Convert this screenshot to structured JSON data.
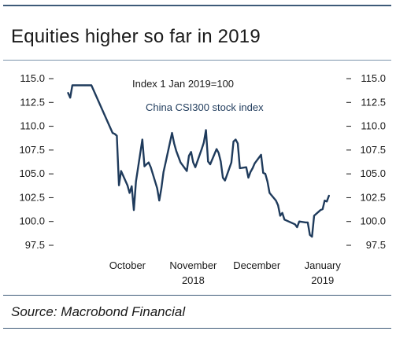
{
  "title": "Equities higher so far in 2019",
  "source": "Source: Macrobond Financial",
  "colors": {
    "series": "#1f3b5c",
    "rule": "#3d5a78",
    "text": "#1a1a1a"
  },
  "chart_data": {
    "type": "line",
    "annotations": {
      "index_note": "Index 1 Jan 2019=100"
    },
    "series": [
      {
        "name": "China CSI300 stock index",
        "color": "#1f3b5c",
        "x": [
          "2018-09-17",
          "2018-09-18",
          "2018-09-19",
          "2018-09-20",
          "2018-09-21",
          "2018-09-25",
          "2018-09-26",
          "2018-09-27",
          "2018-09-28",
          "2018-10-08",
          "2018-10-09",
          "2018-10-10",
          "2018-10-11",
          "2018-10-12",
          "2018-10-15",
          "2018-10-16",
          "2018-10-17",
          "2018-10-18",
          "2018-10-19",
          "2018-10-22",
          "2018-10-23",
          "2018-10-24",
          "2018-10-25",
          "2018-10-26",
          "2018-10-29",
          "2018-10-30",
          "2018-10-31",
          "2018-11-01",
          "2018-11-02",
          "2018-11-05",
          "2018-11-06",
          "2018-11-07",
          "2018-11-08",
          "2018-11-09",
          "2018-11-12",
          "2018-11-13",
          "2018-11-14",
          "2018-11-15",
          "2018-11-16",
          "2018-11-19",
          "2018-11-20",
          "2018-11-21",
          "2018-11-22",
          "2018-11-23",
          "2018-11-26",
          "2018-11-27",
          "2018-11-28",
          "2018-11-29",
          "2018-11-30",
          "2018-12-03",
          "2018-12-04",
          "2018-12-05",
          "2018-12-06",
          "2018-12-07",
          "2018-12-10",
          "2018-12-11",
          "2018-12-12",
          "2018-12-13",
          "2018-12-14",
          "2018-12-17",
          "2018-12-18",
          "2018-12-19",
          "2018-12-20",
          "2018-12-21",
          "2018-12-24",
          "2018-12-25",
          "2018-12-26",
          "2018-12-27",
          "2018-12-28",
          "2019-01-02",
          "2019-01-03",
          "2019-01-04",
          "2019-01-07",
          "2019-01-08",
          "2019-01-09",
          "2019-01-10",
          "2019-01-11",
          "2019-01-14",
          "2019-01-15",
          "2019-01-16",
          "2019-01-17",
          "2019-01-18"
        ],
        "values": [
          113.5,
          113.0,
          114.3,
          114.3,
          114.3,
          114.3,
          114.3,
          114.3,
          114.3,
          109.3,
          109.2,
          109.0,
          103.8,
          105.3,
          103.8,
          103.0,
          103.7,
          101.2,
          104.2,
          108.6,
          105.8,
          106.0,
          106.2,
          105.7,
          103.5,
          102.2,
          103.5,
          105.2,
          106.2,
          109.3,
          108.2,
          107.4,
          106.8,
          106.2,
          105.3,
          106.9,
          107.3,
          106.2,
          105.7,
          107.6,
          108.3,
          109.6,
          106.3,
          106.0,
          107.6,
          107.2,
          106.3,
          104.6,
          104.3,
          106.2,
          108.4,
          108.6,
          108.2,
          105.6,
          105.7,
          104.6,
          105.2,
          105.6,
          106.1,
          107.0,
          105.1,
          105.0,
          104.2,
          103.0,
          102.2,
          101.7,
          100.6,
          100.9,
          100.2,
          99.7,
          99.4,
          100.0,
          99.9,
          99.9,
          98.6,
          98.4,
          100.6,
          101.2,
          101.3,
          102.2,
          102.1,
          102.7
        ]
      }
    ],
    "xlabels": [
      {
        "label": "October",
        "date": "2018-10-15"
      },
      {
        "label": "November",
        "date": "2018-11-15"
      },
      {
        "label": "December",
        "date": "2018-12-15"
      },
      {
        "label": "January",
        "date": "2019-01-15"
      }
    ],
    "year_labels": [
      {
        "label": "2018",
        "date": "2018-11-15"
      },
      {
        "label": "2019",
        "date": "2019-01-15"
      }
    ],
    "xlim": [
      "2018-09-12",
      "2019-01-24"
    ],
    "yticks": [
      97.5,
      100.0,
      102.5,
      105.0,
      107.5,
      110.0,
      112.5,
      115.0
    ],
    "ytick_labels": [
      "97.5",
      "100.0",
      "102.5",
      "105.0",
      "107.5",
      "110.0",
      "112.5",
      "115.0"
    ],
    "ylim": [
      97.5,
      115.0
    ],
    "grid": false,
    "axis_labels_both_sides": true
  }
}
